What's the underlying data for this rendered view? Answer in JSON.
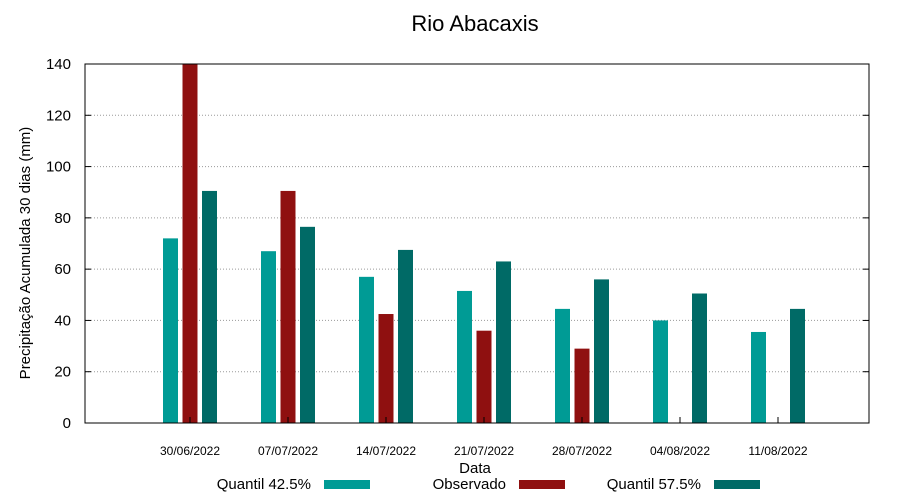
{
  "chart_data": {
    "type": "bar",
    "title": "Rio Abacaxis",
    "xlabel": "Data",
    "ylabel": "Precipitação Acumulada 30 dias (mm)",
    "ylim": [
      0,
      140
    ],
    "yticks": [
      0,
      20,
      40,
      60,
      80,
      100,
      120,
      140
    ],
    "grid": true,
    "legend_position": "bottom",
    "categories": [
      "30/06/2022",
      "07/07/2022",
      "14/07/2022",
      "21/07/2022",
      "28/07/2022",
      "04/08/2022",
      "11/08/2022"
    ],
    "series": [
      {
        "name": "Quantil 42.5%",
        "color": "#009b95",
        "values": [
          72,
          67,
          57,
          51.5,
          44.5,
          40,
          35.5
        ]
      },
      {
        "name": "Observado",
        "color": "#8f1010",
        "values": [
          140,
          90.5,
          42.5,
          36,
          29,
          null,
          null
        ]
      },
      {
        "name": "Quantil 57.5%",
        "color": "#006a66",
        "values": [
          90.5,
          76.5,
          67.5,
          63,
          56,
          50.5,
          44.5
        ]
      }
    ]
  }
}
